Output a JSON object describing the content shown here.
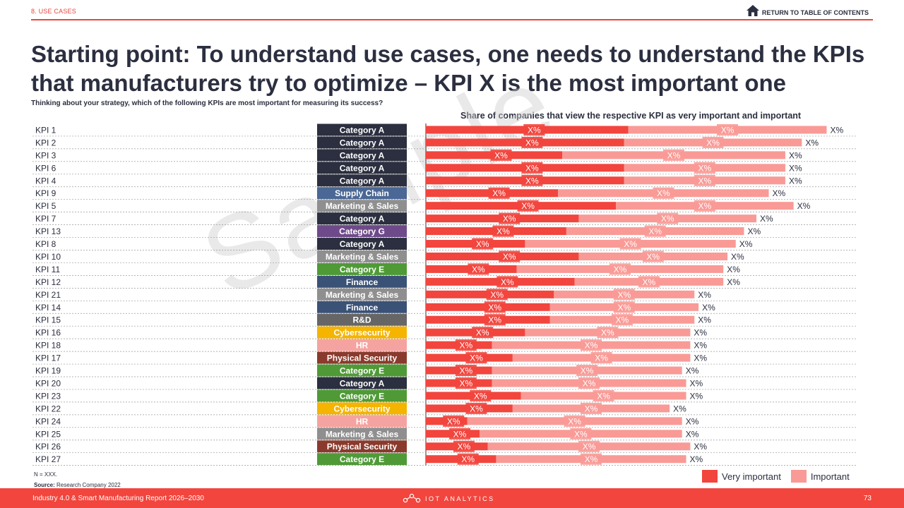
{
  "header": {
    "section": "8. USE CASES",
    "toc_label": "RETURN TO TABLE OF CONTENTS",
    "toc_icon": "home-icon"
  },
  "title": "Starting point: To understand use cases, one needs to understand the KPIs that manufacturers try to optimize – KPI X is the most important one",
  "question": "Thinking about your strategy, which of the following KPIs are most important for measuring its success?",
  "watermark": "Sample",
  "colors": {
    "very_important": "#f2453d",
    "important": "#f99a96",
    "accent": "#e8453c",
    "categories": {
      "Category A": "#2b2f3f",
      "Supply Chain": "#4a6795",
      "Marketing & Sales": "#8f8f8f",
      "Category G": "#6f4a8a",
      "Category E": "#4f9a37",
      "Finance": "#3b5277",
      "R&D": "#666666",
      "Cybersecurity": "#f4b400",
      "HR": "#f5a3a0",
      "Physical Security": "#8a3a2c"
    }
  },
  "chart_data": {
    "type": "bar",
    "orientation": "horizontal",
    "stacked": true,
    "title": "Share of companies that view the respective KPI as very important and important",
    "categories": [
      "KPI 1",
      "KPI 2",
      "KPI 3",
      "KPI 6",
      "KPI 4",
      "KPI 9",
      "KPI 5",
      "KPI 7",
      "KPI 13",
      "KPI 8",
      "KPI 10",
      "KPI 11",
      "KPI 12",
      "KPI 21",
      "KPI 14",
      "KPI 15",
      "KPI 16",
      "KPI 18",
      "KPI 17",
      "KPI 19",
      "KPI 20",
      "KPI 23",
      "KPI 22",
      "KPI 24",
      "KPI 25",
      "KPI 26",
      "KPI 27"
    ],
    "kpi_category": [
      "Category A",
      "Category A",
      "Category A",
      "Category A",
      "Category A",
      "Supply Chain",
      "Marketing & Sales",
      "Category A",
      "Category G",
      "Category A",
      "Marketing & Sales",
      "Category E",
      "Finance",
      "Marketing & Sales",
      "Finance",
      "R&D",
      "Cybersecurity",
      "HR",
      "Physical Security",
      "Category E",
      "Category A",
      "Category E",
      "Cybersecurity",
      "HR",
      "Marketing & Sales",
      "Physical Security",
      "Category E"
    ],
    "series": [
      {
        "name": "Very important",
        "values": [
          49,
          48,
          33,
          48,
          48,
          32,
          46,
          37,
          34,
          24,
          37,
          22,
          36,
          31,
          30,
          30,
          24,
          16,
          21,
          16,
          16,
          23,
          21,
          10,
          13,
          15,
          17
        ]
      },
      {
        "name": "Important",
        "values": [
          48,
          43,
          54,
          39,
          39,
          51,
          43,
          43,
          43,
          51,
          36,
          50,
          36,
          34,
          36,
          35,
          40,
          48,
          43,
          46,
          47,
          40,
          38,
          52,
          49,
          49,
          46
        ]
      }
    ],
    "segment_labels": "X%",
    "total_labels": "X%",
    "xlim": [
      0,
      100
    ],
    "legend": "bottom-right"
  },
  "footnote": {
    "n": "N = XXX.",
    "source_label": "Source:",
    "source_text": "Research Company 2022"
  },
  "footer": {
    "report": "Industry 4.0 & Smart Manufacturing Report 2026–2030",
    "brand": "IOT ANALYTICS",
    "brand_icon": "iot-analytics-logo-icon",
    "page": "73"
  }
}
